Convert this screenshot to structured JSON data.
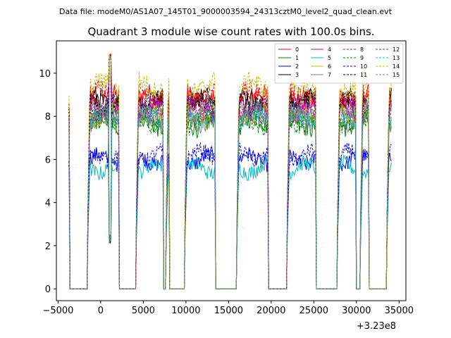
{
  "suptitle": "Data file: modeM0/AS1A07_145T01_9000003594_24313cztM0_level2_quad_clean.evt",
  "chart_data": {
    "type": "line",
    "title": "Quadrant 3 module wise count rates with 100.0s bins.",
    "xlabel": "",
    "ylabel": "",
    "x_offset_label": "+3.23e8",
    "xlim": [
      -5200,
      35800
    ],
    "ylim": [
      -0.55,
      11.5
    ],
    "x_ticks": [
      -5000,
      0,
      5000,
      10000,
      15000,
      20000,
      25000,
      30000,
      35000
    ],
    "x_tick_labels": [
      "−5000",
      "0",
      "5000",
      "10000",
      "15000",
      "20000",
      "25000",
      "30000",
      "35000"
    ],
    "y_ticks": [
      0,
      2,
      4,
      6,
      8,
      10
    ],
    "y_tick_labels": [
      "0",
      "2",
      "4",
      "6",
      "8",
      "10"
    ],
    "legend_position": "top-right",
    "bin_seconds": 100,
    "time_range": [
      -3800,
      34100
    ],
    "on_segments": [
      [
        -3800,
        -3700
      ],
      [
        -1500,
        2100
      ],
      [
        4200,
        7300
      ],
      [
        7700,
        8000
      ],
      [
        9900,
        13400
      ],
      [
        16000,
        19600
      ],
      [
        21900,
        25200
      ],
      [
        27800,
        29900
      ],
      [
        30500,
        31400
      ],
      [
        33600,
        34100
      ]
    ],
    "series": [
      {
        "name": "0",
        "color": "#ff0000",
        "dash": "solid",
        "mean": 8.85
      },
      {
        "name": "1",
        "color": "#008000",
        "dash": "solid",
        "mean": 7.7
      },
      {
        "name": "2",
        "color": "#0000ff",
        "dash": "solid",
        "mean": 6.0
      },
      {
        "name": "3",
        "color": "#000000",
        "dash": "solid",
        "mean": 8.75
      },
      {
        "name": "4",
        "color": "#c000c0",
        "dash": "solid",
        "mean": 8.4
      },
      {
        "name": "5",
        "color": "#00bfbf",
        "dash": "solid",
        "mean": 5.6
      },
      {
        "name": "6",
        "color": "#bfbf00",
        "dash": "solid",
        "mean": 8.1
      },
      {
        "name": "7",
        "color": "#808080",
        "dash": "solid",
        "mean": 7.9
      },
      {
        "name": "8",
        "color": "#ff0000",
        "dash": "dashed",
        "mean": 9.0
      },
      {
        "name": "9",
        "color": "#008000",
        "dash": "dashed",
        "mean": 7.8
      },
      {
        "name": "10",
        "color": "#0000ff",
        "dash": "dashed",
        "mean": 6.2
      },
      {
        "name": "11",
        "color": "#000000",
        "dash": "dashed",
        "mean": 8.6
      },
      {
        "name": "12",
        "color": "#c000c0",
        "dash": "dashed",
        "mean": 8.3
      },
      {
        "name": "13",
        "color": "#00bfbf",
        "dash": "dashed",
        "mean": 8.0
      },
      {
        "name": "14",
        "color": "#bfbf00",
        "dash": "dashed",
        "mean": 9.4
      },
      {
        "name": "15",
        "color": "#808080",
        "dash": "dashed",
        "mean": 8.2
      }
    ]
  }
}
